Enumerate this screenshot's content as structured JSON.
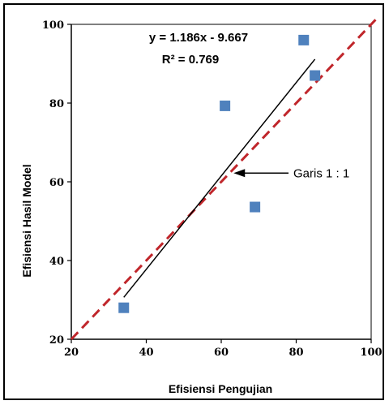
{
  "chart_data": {
    "type": "scatter",
    "xlabel": "Efisiensi Pengujian",
    "ylabel": "Efisiensi  Hasil  Model",
    "xlim": [
      20,
      100
    ],
    "ylim": [
      20,
      100
    ],
    "xticks": [
      20,
      40,
      60,
      80,
      100
    ],
    "yticks": [
      20,
      40,
      60,
      80,
      100
    ],
    "grid": false,
    "series": [
      {
        "points": [
          {
            "x": 34,
            "y": 28
          },
          {
            "x": 61,
            "y": 79.3
          },
          {
            "x": 69,
            "y": 53.6
          },
          {
            "x": 82,
            "y": 96
          },
          {
            "x": 85,
            "y": 87
          }
        ],
        "color": "#4f81bd",
        "marker": "square"
      }
    ],
    "trendline": {
      "slope": 1.186,
      "intercept": -9.667,
      "x_range": [
        34,
        85
      ],
      "color": "#000000",
      "equation_text": "y = 1.186x - 9.667",
      "r2_text": "R² = 0.769"
    },
    "reference_line": {
      "slope": 1,
      "intercept": 0,
      "color": "#c0262b",
      "style": "dashed",
      "label": "Garis 1 : 1",
      "label_at": {
        "x": 62,
        "y": 62
      }
    }
  }
}
